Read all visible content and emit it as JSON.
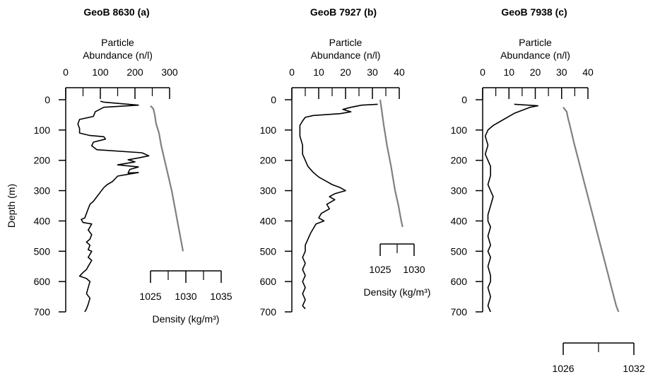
{
  "chart_data": [
    {
      "type": "line",
      "title": "GeoB 8630 (a)",
      "xlabel": "Particle Abundance (n/l)",
      "x2label": "Density (kg/m³)",
      "ylabel": "Depth (m)",
      "ylim": [
        0,
        700
      ],
      "yticks": [
        "0",
        "100",
        "200",
        "300",
        "400",
        "500",
        "600",
        "700"
      ],
      "xlim": [
        0,
        300
      ],
      "xticks": [
        "0",
        "100",
        "200",
        "300"
      ],
      "x2lim": [
        1025,
        1035
      ],
      "x2ticks": [
        "1025",
        "1030",
        "1035"
      ],
      "series": [
        {
          "color": "#000000",
          "axis": "abundance",
          "points": [
            [
              100,
              5
            ],
            [
              110,
              8
            ],
            [
              210,
              18
            ],
            [
              110,
              25
            ],
            [
              85,
              40
            ],
            [
              80,
              55
            ],
            [
              40,
              65
            ],
            [
              35,
              80
            ],
            [
              40,
              95
            ],
            [
              40,
              110
            ],
            [
              70,
              118
            ],
            [
              110,
              122
            ],
            [
              115,
              130
            ],
            [
              80,
              140
            ],
            [
              75,
              152
            ],
            [
              90,
              165
            ],
            [
              220,
              175
            ],
            [
              240,
              185
            ],
            [
              210,
              192
            ],
            [
              180,
              198
            ],
            [
              200,
              205
            ],
            [
              150,
              215
            ],
            [
              210,
              222
            ],
            [
              185,
              230
            ],
            [
              180,
              242
            ],
            [
              210,
              240
            ],
            [
              150,
              252
            ],
            [
              135,
              270
            ],
            [
              120,
              280
            ],
            [
              110,
              290
            ],
            [
              100,
              305
            ],
            [
              90,
              320
            ],
            [
              80,
              335
            ],
            [
              70,
              345
            ],
            [
              65,
              360
            ],
            [
              60,
              375
            ],
            [
              55,
              390
            ],
            [
              45,
              395
            ],
            [
              50,
              405
            ],
            [
              75,
              410
            ],
            [
              70,
              420
            ],
            [
              65,
              430
            ],
            [
              75,
              445
            ],
            [
              70,
              460
            ],
            [
              60,
              470
            ],
            [
              70,
              480
            ],
            [
              65,
              495
            ],
            [
              75,
              500
            ],
            [
              70,
              510
            ],
            [
              65,
              520
            ],
            [
              75,
              530
            ],
            [
              70,
              540
            ],
            [
              65,
              550
            ],
            [
              60,
              560
            ],
            [
              50,
              570
            ],
            [
              40,
              582
            ],
            [
              60,
              590
            ],
            [
              70,
              600
            ],
            [
              65,
              620
            ],
            [
              60,
              640
            ],
            [
              70,
              655
            ],
            [
              65,
              675
            ],
            [
              60,
              690
            ],
            [
              55,
              700
            ]
          ]
        },
        {
          "color": "#808080",
          "axis": "density",
          "points": [
            [
              1025.0,
              20
            ],
            [
              1025.4,
              30
            ],
            [
              1025.6,
              50
            ],
            [
              1025.8,
              80
            ],
            [
              1026.2,
              110
            ],
            [
              1026.5,
              150
            ],
            [
              1027.0,
              200
            ],
            [
              1027.5,
              250
            ],
            [
              1028.0,
              300
            ],
            [
              1028.4,
              350
            ],
            [
              1028.8,
              400
            ],
            [
              1029.2,
              450
            ],
            [
              1029.6,
              500
            ]
          ]
        }
      ]
    },
    {
      "type": "line",
      "title": "GeoB 7927 (b)",
      "xlabel": "Particle Abundance (n/l)",
      "x2label": "Density (kg/m³)",
      "ylabel": "",
      "ylim": [
        0,
        700
      ],
      "yticks": [
        "0",
        "100",
        "200",
        "300",
        "400",
        "500",
        "600",
        "700"
      ],
      "xlim": [
        0,
        40
      ],
      "xticks": [
        "0",
        "10",
        "20",
        "30",
        "40"
      ],
      "x2lim": [
        1025,
        1030
      ],
      "x2ticks": [
        "1025",
        "1030"
      ],
      "series": [
        {
          "color": "#000000",
          "axis": "abundance",
          "points": [
            [
              32,
              15
            ],
            [
              26,
              18
            ],
            [
              22,
              25
            ],
            [
              19,
              32
            ],
            [
              22,
              40
            ],
            [
              18,
              46
            ],
            [
              8,
              52
            ],
            [
              5,
              58
            ],
            [
              4,
              70
            ],
            [
              3,
              85
            ],
            [
              3,
              100
            ],
            [
              3,
              120
            ],
            [
              4,
              150
            ],
            [
              4,
              180
            ],
            [
              5,
              200
            ],
            [
              6,
              220
            ],
            [
              8,
              240
            ],
            [
              10,
              255
            ],
            [
              13,
              270
            ],
            [
              15,
              280
            ],
            [
              18,
              290
            ],
            [
              20,
              300
            ],
            [
              16,
              310
            ],
            [
              14,
              320
            ],
            [
              16,
              330
            ],
            [
              13,
              345
            ],
            [
              14,
              360
            ],
            [
              11,
              375
            ],
            [
              10,
              390
            ],
            [
              12,
              400
            ],
            [
              9,
              410
            ],
            [
              8,
              425
            ],
            [
              7,
              440
            ],
            [
              6,
              460
            ],
            [
              5,
              480
            ],
            [
              5,
              500
            ],
            [
              4,
              520
            ],
            [
              5,
              540
            ],
            [
              4,
              560
            ],
            [
              5,
              580
            ],
            [
              4,
              600
            ],
            [
              5,
              620
            ],
            [
              4,
              640
            ],
            [
              5,
              660
            ],
            [
              4,
              680
            ],
            [
              5,
              690
            ]
          ]
        },
        {
          "color": "#808080",
          "axis": "density",
          "points": [
            [
              1025.0,
              0
            ],
            [
              1025.2,
              30
            ],
            [
              1025.5,
              80
            ],
            [
              1026.0,
              150
            ],
            [
              1026.6,
              220
            ],
            [
              1027.2,
              300
            ],
            [
              1027.7,
              350
            ],
            [
              1028.1,
              400
            ],
            [
              1028.3,
              420
            ]
          ]
        }
      ]
    },
    {
      "type": "line",
      "title": "GeoB 7938 (c)",
      "xlabel": "Particle Abundance (n/l)",
      "x2label": "Density (kg/m³)",
      "ylabel": "",
      "ylim": [
        0,
        700
      ],
      "yticks": [
        "0",
        "100",
        "200",
        "300",
        "400",
        "500",
        "600",
        "700"
      ],
      "xlim": [
        0,
        40
      ],
      "xticks": [
        "0",
        "10",
        "20",
        "30",
        "40"
      ],
      "x2lim": [
        1026,
        1032
      ],
      "x2ticks": [
        "1026",
        "1032"
      ],
      "series": [
        {
          "color": "#000000",
          "axis": "abundance",
          "points": [
            [
              12,
              15
            ],
            [
              21,
              20
            ],
            [
              18,
              25
            ],
            [
              15,
              35
            ],
            [
              12,
              45
            ],
            [
              10,
              55
            ],
            [
              7,
              70
            ],
            [
              4,
              85
            ],
            [
              2,
              100
            ],
            [
              1,
              120
            ],
            [
              2,
              150
            ],
            [
              1,
              180
            ],
            [
              2,
              200
            ],
            [
              3,
              220
            ],
            [
              3,
              250
            ],
            [
              2,
              280
            ],
            [
              3,
              300
            ],
            [
              4,
              320
            ],
            [
              3,
              350
            ],
            [
              2,
              380
            ],
            [
              2,
              400
            ],
            [
              3,
              420
            ],
            [
              2,
              450
            ],
            [
              3,
              480
            ],
            [
              2,
              500
            ],
            [
              3,
              520
            ],
            [
              2,
              550
            ],
            [
              3,
              580
            ],
            [
              3,
              600
            ],
            [
              2,
              620
            ],
            [
              3,
              650
            ],
            [
              2,
              680
            ],
            [
              3,
              700
            ]
          ]
        },
        {
          "color": "#808080",
          "axis": "density",
          "points": [
            [
              1026.0,
              25
            ],
            [
              1026.3,
              40
            ],
            [
              1026.4,
              60
            ],
            [
              1026.6,
              90
            ],
            [
              1026.9,
              140
            ],
            [
              1027.3,
              200
            ],
            [
              1027.7,
              260
            ],
            [
              1028.1,
              320
            ],
            [
              1028.5,
              380
            ],
            [
              1028.9,
              440
            ],
            [
              1029.3,
              500
            ],
            [
              1029.7,
              560
            ],
            [
              1030.1,
              620
            ],
            [
              1030.5,
              680
            ],
            [
              1030.7,
              700
            ]
          ]
        }
      ]
    }
  ]
}
